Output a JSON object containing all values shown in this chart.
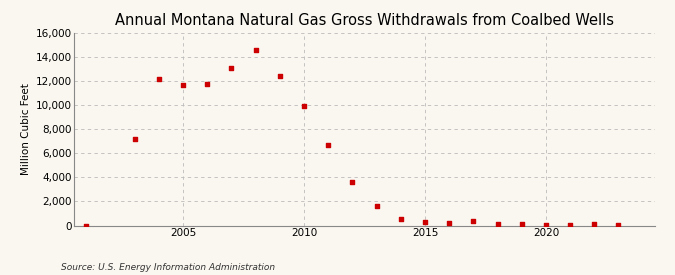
{
  "title": "Annual Montana Natural Gas Gross Withdrawals from Coalbed Wells",
  "ylabel": "Million Cubic Feet",
  "source": "Source: U.S. Energy Information Administration",
  "background_color": "#faf7f0",
  "plot_bg_color": "#faf7f0",
  "marker_color": "#cc0000",
  "years": [
    2001,
    2003,
    2004,
    2005,
    2006,
    2007,
    2008,
    2009,
    2010,
    2011,
    2012,
    2013,
    2014,
    2015,
    2016,
    2017,
    2018,
    2019,
    2020,
    2021,
    2022,
    2023
  ],
  "values": [
    0,
    7200,
    12200,
    11700,
    11800,
    13100,
    14600,
    12400,
    9900,
    6700,
    3600,
    1600,
    550,
    300,
    200,
    400,
    150,
    100,
    80,
    50,
    100,
    50
  ],
  "xlim": [
    2000.5,
    2024.5
  ],
  "ylim": [
    0,
    16000
  ],
  "yticks": [
    0,
    2000,
    4000,
    6000,
    8000,
    10000,
    12000,
    14000,
    16000
  ],
  "xticks": [
    2005,
    2010,
    2015,
    2020
  ],
  "grid_color": "#bbbbbb",
  "title_fontsize": 10.5,
  "label_fontsize": 7.5,
  "tick_fontsize": 7.5,
  "source_fontsize": 6.5
}
